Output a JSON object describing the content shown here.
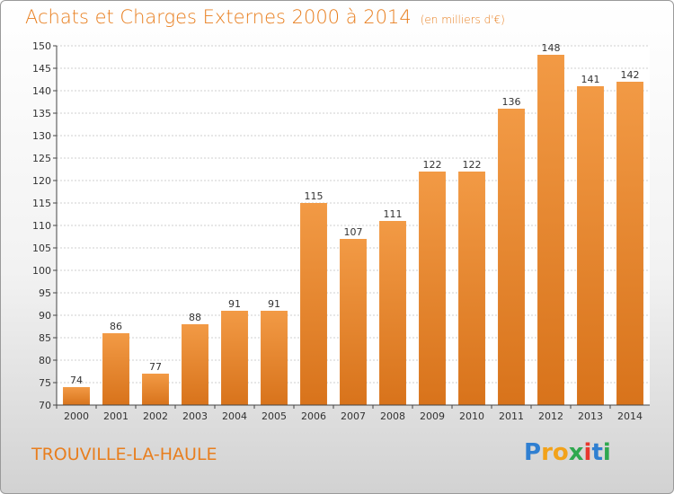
{
  "header": {
    "title": "Achats et Charges Externes 2000 à 2014",
    "subtitle": "(en milliers d'€)"
  },
  "footer": {
    "commune": "TROUVILLE-LA-HAULE",
    "logo_letters": [
      "P",
      "r",
      "o",
      "x",
      "i",
      "t",
      "i"
    ],
    "logo_colors": [
      "#2f7fd1",
      "#f2a21a",
      "#f2a21a",
      "#2fa84f",
      "#e8372d",
      "#2f7fd1",
      "#2fa84f"
    ]
  },
  "chart_data": {
    "type": "bar",
    "title": "Achats et Charges Externes 2000 à 2014",
    "subtitle": "(en milliers d'€)",
    "categories": [
      "2000",
      "2001",
      "2002",
      "2003",
      "2004",
      "2005",
      "2006",
      "2007",
      "2008",
      "2009",
      "2010",
      "2011",
      "2012",
      "2013",
      "2014"
    ],
    "values": [
      74,
      86,
      77,
      88,
      91,
      91,
      115,
      107,
      111,
      122,
      122,
      136,
      148,
      141,
      142
    ],
    "ylim": [
      70,
      150
    ],
    "yticks": [
      70,
      75,
      80,
      85,
      90,
      95,
      100,
      105,
      110,
      115,
      120,
      125,
      130,
      135,
      140,
      145,
      150
    ],
    "grid": true,
    "bar_color": "#f29a45",
    "bar_color_dark": "#d8731b",
    "xlabel": "",
    "ylabel": ""
  }
}
